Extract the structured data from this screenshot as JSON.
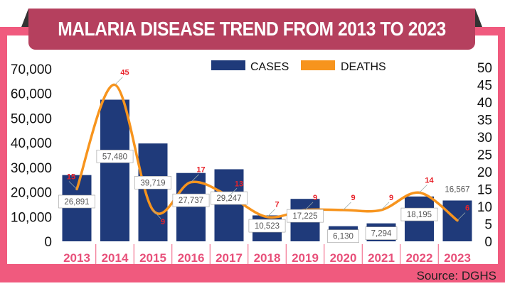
{
  "chart_data": {
    "type": "bar+line",
    "title": "MALARIA DISEASE TREND FROM 2013 TO 2023",
    "source": "Source: DGHS",
    "categories": [
      "2013",
      "2014",
      "2015",
      "2016",
      "2017",
      "2018",
      "2019",
      "2020",
      "2021",
      "2022",
      "2023"
    ],
    "series": [
      {
        "name": "CASES",
        "type": "bar",
        "axis": "left",
        "color": "#1f3a7a",
        "values": [
          26891,
          57480,
          39719,
          27737,
          29247,
          10523,
          17225,
          6130,
          7294,
          18195,
          16567
        ],
        "labels": [
          "26,891",
          "57,480",
          "39,719",
          "27,737",
          "29,247",
          "10,523",
          "17,225",
          "6,130",
          "7,294",
          "18,195",
          "16,567"
        ]
      },
      {
        "name": "DEATHS",
        "type": "line",
        "axis": "right",
        "color": "#f7941d",
        "values": [
          15,
          45,
          9,
          17,
          13,
          7,
          9,
          9,
          9,
          14,
          6
        ],
        "labels": [
          "15",
          "45",
          "9",
          "17",
          "13",
          "7",
          "9",
          "9",
          "9",
          "14",
          "6"
        ]
      }
    ],
    "y_left": {
      "range": [
        0,
        70000
      ],
      "ticks": [
        "0",
        "10,000",
        "20,000",
        "30,000",
        "40,000",
        "50,000",
        "60,000",
        "70,000"
      ]
    },
    "y_right": {
      "range": [
        0,
        50
      ],
      "ticks": [
        "0",
        "5",
        "10",
        "15",
        "20",
        "25",
        "30",
        "35",
        "40",
        "45",
        "50"
      ]
    },
    "legend": "top-center",
    "grid": false,
    "colors": {
      "frame": "#f05a7e",
      "banner": "#b5405e",
      "year_label": "#e8507a",
      "death_label": "#e8222a"
    }
  }
}
